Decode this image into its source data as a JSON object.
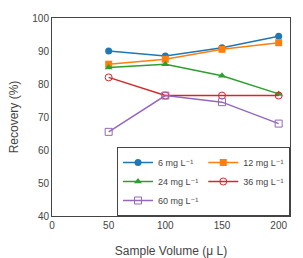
{
  "chart_data": {
    "type": "line",
    "x": [
      50,
      100,
      150,
      200
    ],
    "series": [
      {
        "name": "6 mg L⁻¹",
        "values": [
          90.0,
          88.5,
          91.0,
          94.5
        ],
        "marker": "circle"
      },
      {
        "name": "12 mg L⁻¹",
        "values": [
          86.0,
          87.5,
          90.5,
          92.5
        ],
        "marker": "square"
      },
      {
        "name": "24 mg L⁻¹",
        "values": [
          85.0,
          86.0,
          82.5,
          77.0
        ],
        "marker": "triangle-up"
      },
      {
        "name": "36 mg L⁻¹",
        "values": [
          82.0,
          76.5,
          76.5,
          76.5
        ],
        "marker": "circle-open"
      },
      {
        "name": "60 mg L⁻¹",
        "values": [
          65.5,
          76.5,
          74.5,
          68.0
        ],
        "marker": "square-open"
      }
    ],
    "xlabel": "Sample Volume (μ L)",
    "ylabel": "Recovery (%)",
    "xlim": [
      0,
      210
    ],
    "ylim": [
      40,
      100
    ],
    "xticks": [
      0,
      50,
      100,
      150,
      200
    ],
    "yticks": [
      40,
      50,
      60,
      70,
      80,
      90,
      100
    ],
    "legend": "lower right",
    "grid": false
  }
}
